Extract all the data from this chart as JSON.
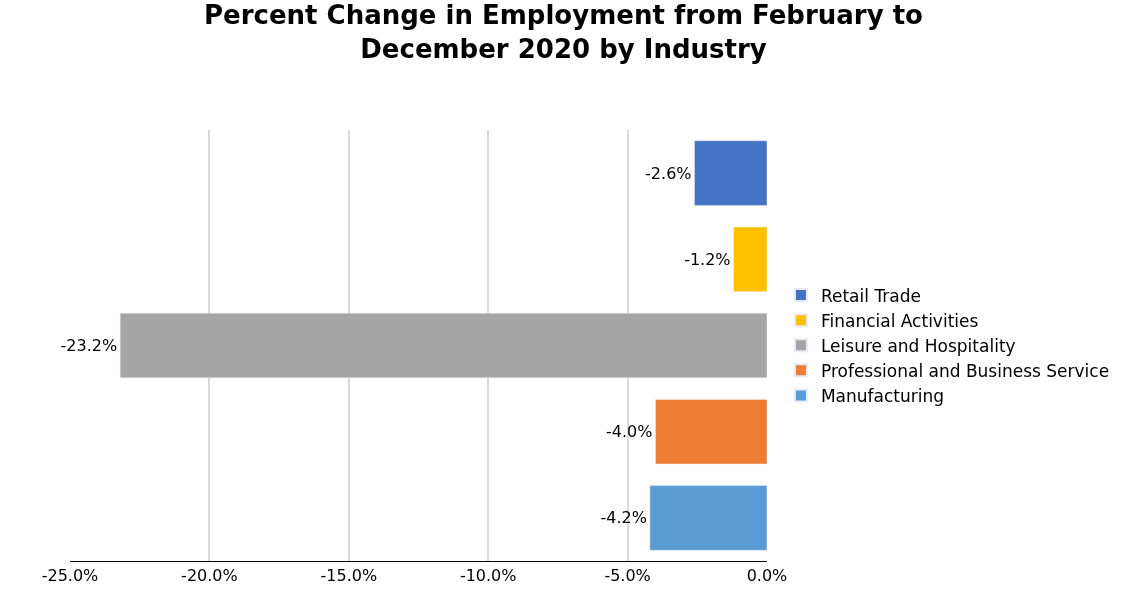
{
  "chart_data": {
    "type": "bar",
    "orientation": "horizontal",
    "title": "Percent Change in Employment from February to\nDecember 2020 by Industry",
    "categories": [
      null,
      null,
      null,
      null,
      null
    ],
    "series": [
      {
        "name": "Retail Trade",
        "color": "#4472c4",
        "values": [
          -2.6,
          null,
          null,
          null,
          null
        ],
        "value_labels": [
          "-2.6%",
          null,
          null,
          null,
          null
        ]
      },
      {
        "name": "Financial Activities",
        "color": "#ffc000",
        "values": [
          null,
          -1.2,
          null,
          null,
          null
        ],
        "value_labels": [
          null,
          "-1.2%",
          null,
          null,
          null
        ]
      },
      {
        "name": "Leisure and Hospitality",
        "color": "#a5a5a5",
        "values": [
          null,
          null,
          -23.2,
          null,
          null
        ],
        "value_labels": [
          null,
          null,
          "-23.2%",
          null,
          null
        ]
      },
      {
        "name": "Professional and Business Service",
        "color": "#ed7d31",
        "values": [
          null,
          null,
          null,
          -4.0,
          null
        ],
        "value_labels": [
          null,
          null,
          null,
          "-4.0%",
          null
        ]
      },
      {
        "name": "Manufacturing",
        "color": "#5b9bd5",
        "values": [
          null,
          null,
          null,
          null,
          -4.2
        ],
        "value_labels": [
          null,
          null,
          null,
          null,
          "-4.2%"
        ]
      }
    ],
    "xlim": [
      -25,
      0
    ],
    "xticks": [
      {
        "value": -25,
        "label": "-25.0%"
      },
      {
        "value": -20,
        "label": "-20.0%"
      },
      {
        "value": -15,
        "label": "-15.0%"
      },
      {
        "value": -10,
        "label": "-10.0%"
      },
      {
        "value": -5,
        "label": "-5.0%"
      },
      {
        "value": 0,
        "label": "0.0%"
      }
    ],
    "grid": "x",
    "legend": "right",
    "tick_labels": "x"
  }
}
